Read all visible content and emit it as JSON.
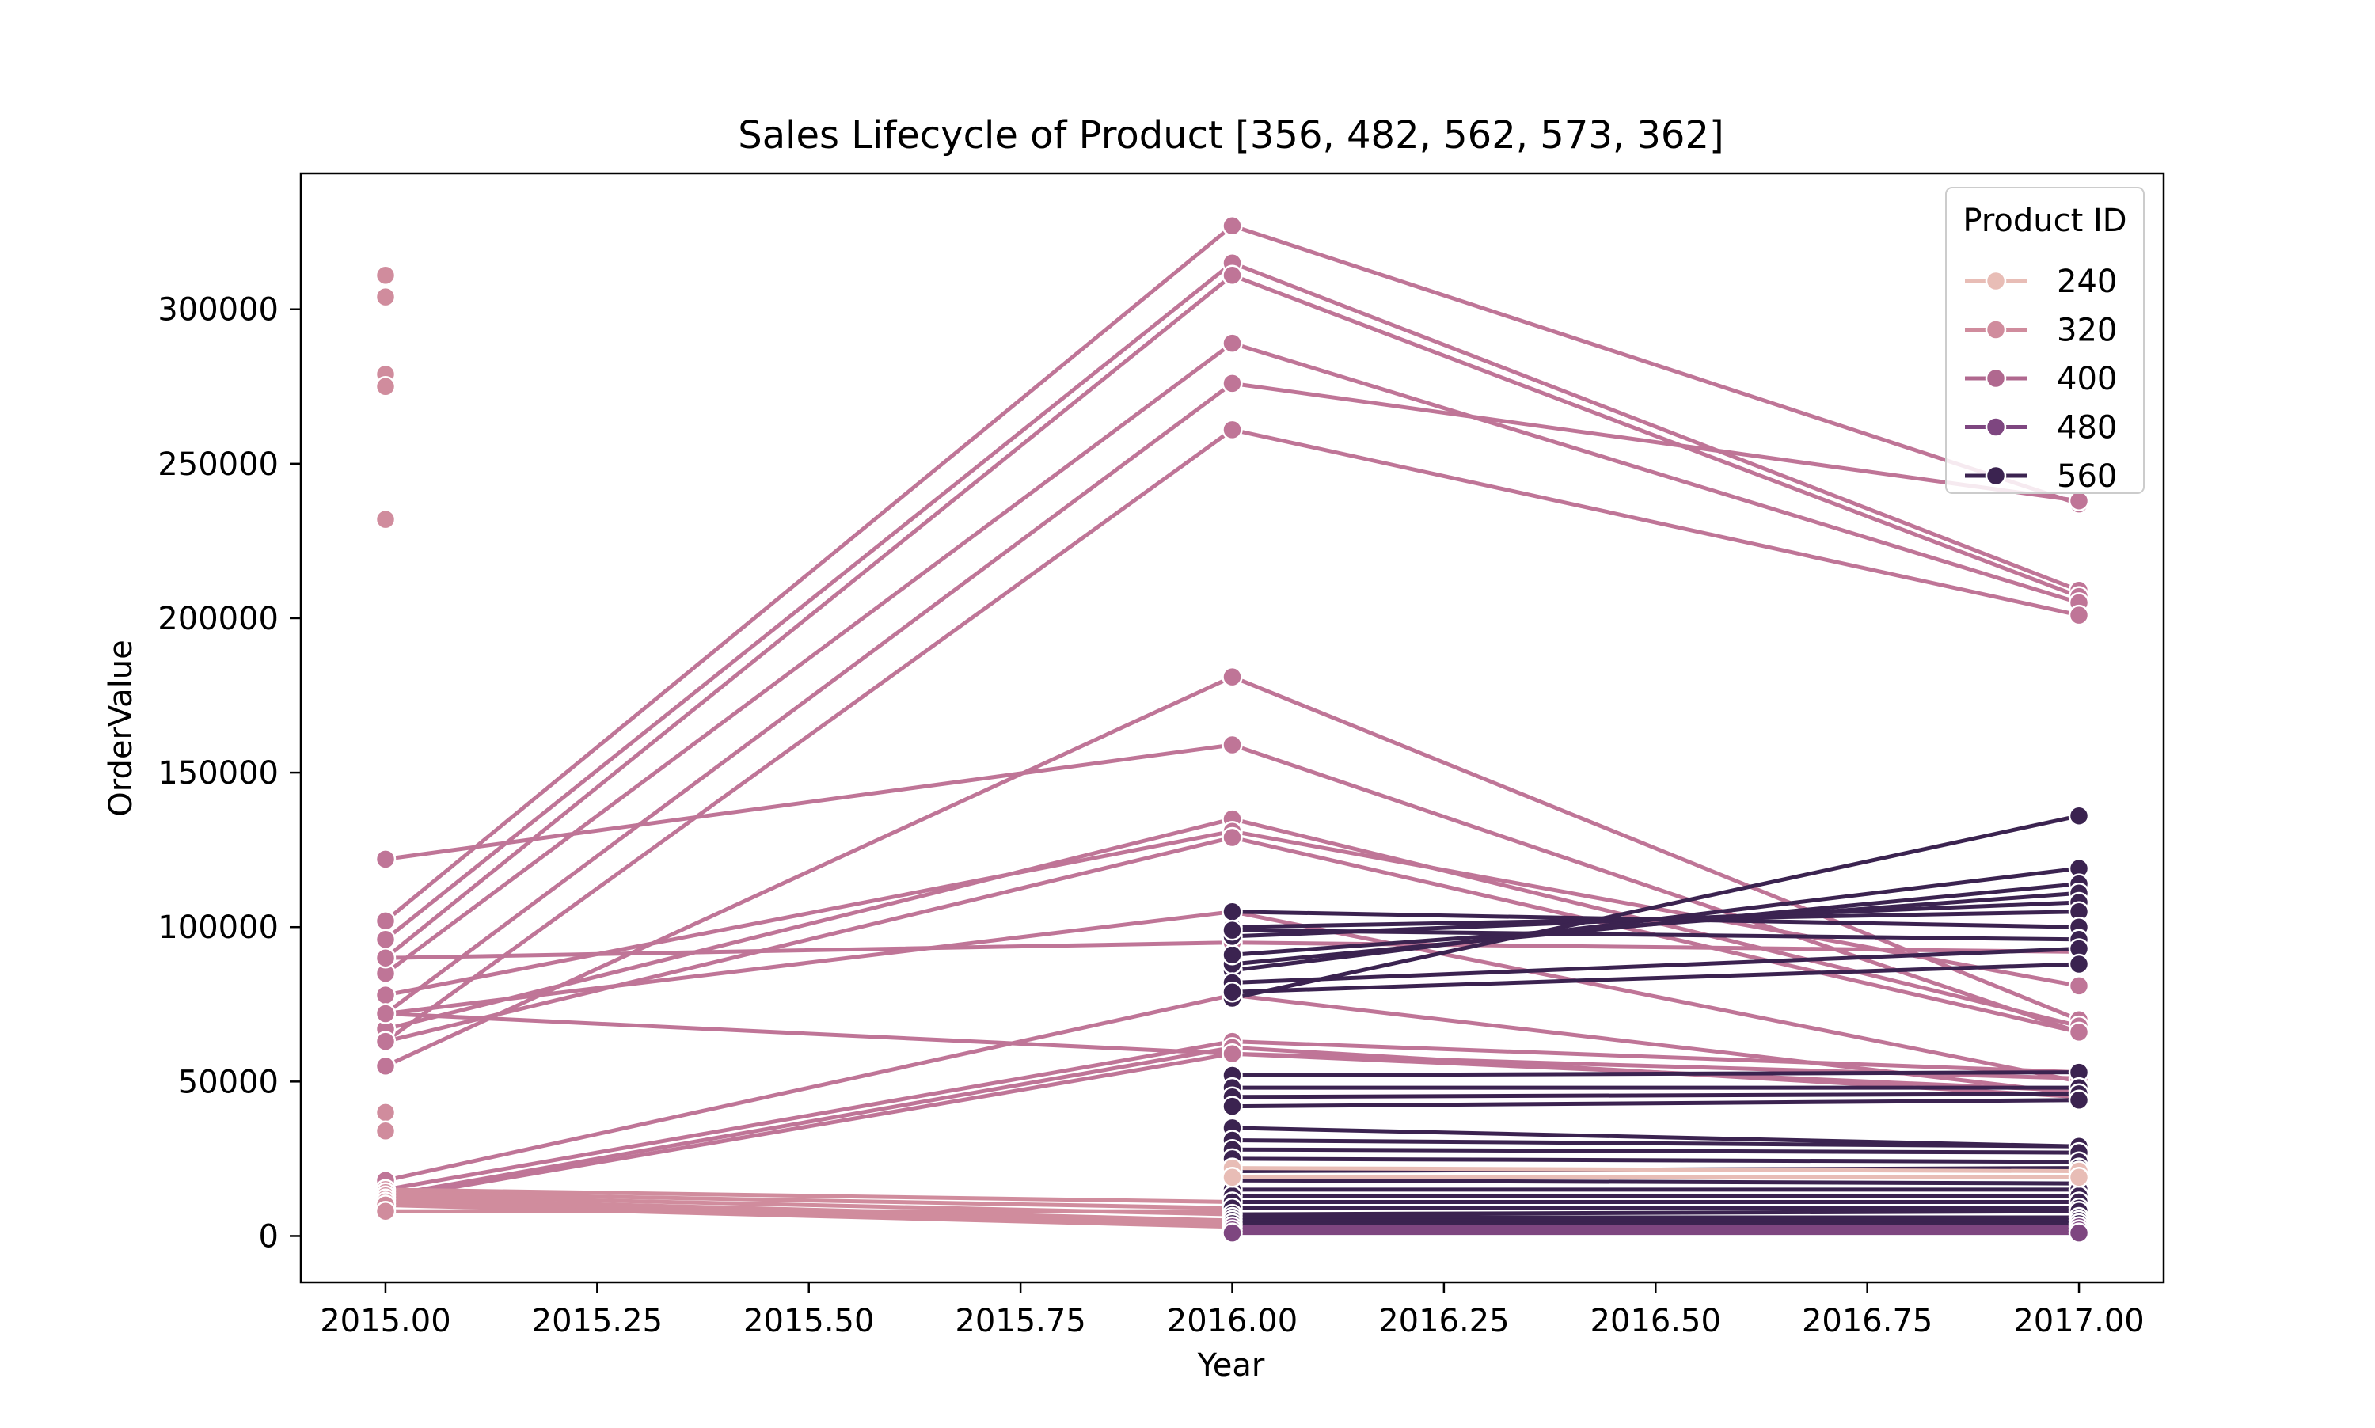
{
  "chart_data": {
    "type": "line",
    "title": "Sales Lifecycle of Product [356, 482, 562, 573, 362]",
    "xlabel": "Year",
    "ylabel": "OrderValue",
    "xlim": [
      2014.9,
      2017.1
    ],
    "ylim": [
      -15000,
      344000
    ],
    "x_ticks": [
      2015.0,
      2015.25,
      2015.5,
      2015.75,
      2016.0,
      2016.25,
      2016.5,
      2016.75,
      2017.0
    ],
    "x_tick_labels": [
      "2015.00",
      "2015.25",
      "2015.50",
      "2015.75",
      "2016.00",
      "2016.25",
      "2016.50",
      "2016.75",
      "2017.00"
    ],
    "y_ticks": [
      0,
      50000,
      100000,
      150000,
      200000,
      250000,
      300000
    ],
    "y_tick_labels": [
      "0",
      "50000",
      "100000",
      "150000",
      "200000",
      "250000",
      "300000"
    ],
    "grid": false,
    "legend": {
      "title": "Product ID",
      "placement": "top-right",
      "entries": [
        {
          "label": "240",
          "color": "#e8bdb6"
        },
        {
          "label": "320",
          "color": "#d08c9d"
        },
        {
          "label": "400",
          "color": "#b0688f"
        },
        {
          "label": "480",
          "color": "#7e4680"
        },
        {
          "label": "560",
          "color": "#3b2350"
        }
      ]
    },
    "series": [
      {
        "color": "#bf7597",
        "x": [
          2015,
          2016,
          2017
        ],
        "y": [
          102000,
          327000,
          237000
        ]
      },
      {
        "color": "#bf7597",
        "x": [
          2015,
          2016,
          2017
        ],
        "y": [
          96000,
          315000,
          209000
        ]
      },
      {
        "color": "#bf7597",
        "x": [
          2015,
          2016,
          2017
        ],
        "y": [
          90000,
          311000,
          207000
        ]
      },
      {
        "color": "#bf7597",
        "x": [
          2015,
          2016,
          2017
        ],
        "y": [
          85000,
          289000,
          205000
        ]
      },
      {
        "color": "#bf7597",
        "x": [
          2015,
          2016,
          2017
        ],
        "y": [
          72000,
          276000,
          238000
        ]
      },
      {
        "color": "#bf7597",
        "x": [
          2015,
          2016,
          2017
        ],
        "y": [
          63000,
          261000,
          201000
        ]
      },
      {
        "color": "#bf7597",
        "x": [
          2015,
          2016,
          2017
        ],
        "y": [
          55000,
          181000,
          70000
        ]
      },
      {
        "color": "#bf7597",
        "x": [
          2015,
          2016,
          2017
        ],
        "y": [
          122000,
          159000,
          66000
        ]
      },
      {
        "color": "#bf7597",
        "x": [
          2015,
          2016,
          2017
        ],
        "y": [
          67000,
          135000,
          68000
        ]
      },
      {
        "color": "#bf7597",
        "x": [
          2015,
          2016,
          2017
        ],
        "y": [
          78000,
          131000,
          81000
        ]
      },
      {
        "color": "#bf7597",
        "x": [
          2015,
          2016,
          2017
        ],
        "y": [
          63000,
          129000,
          66000
        ]
      },
      {
        "color": "#bf7597",
        "x": [
          2015,
          2016,
          2017
        ],
        "y": [
          72000,
          105000,
          50000
        ]
      },
      {
        "color": "#bf7597",
        "x": [
          2015,
          2016,
          2017
        ],
        "y": [
          90000,
          95000,
          92000
        ]
      },
      {
        "color": "#bf7597",
        "x": [
          2015,
          2016,
          2017
        ],
        "y": [
          72000,
          59000,
          51000
        ]
      },
      {
        "color": "#bf7597",
        "x": [
          2015,
          2016,
          2017
        ],
        "y": [
          18000,
          78000,
          46000
        ]
      },
      {
        "color": "#bf7597",
        "x": [
          2015,
          2016,
          2017
        ],
        "y": [
          15000,
          63000,
          53000
        ]
      },
      {
        "color": "#bf7597",
        "x": [
          2015,
          2016,
          2017
        ],
        "y": [
          13000,
          61000,
          45000
        ]
      },
      {
        "color": "#bf7597",
        "x": [
          2015,
          2016,
          2017
        ],
        "y": [
          12000,
          59000,
          47000
        ]
      },
      {
        "color": "#d08c9d",
        "x": [
          2015
        ],
        "y": [
          311000
        ]
      },
      {
        "color": "#d08c9d",
        "x": [
          2015
        ],
        "y": [
          304000
        ]
      },
      {
        "color": "#d08c9d",
        "x": [
          2015
        ],
        "y": [
          279000
        ]
      },
      {
        "color": "#d08c9d",
        "x": [
          2015
        ],
        "y": [
          275000
        ]
      },
      {
        "color": "#d08c9d",
        "x": [
          2015
        ],
        "y": [
          232000
        ]
      },
      {
        "color": "#d08c9d",
        "x": [
          2015
        ],
        "y": [
          40000
        ]
      },
      {
        "color": "#d08c9d",
        "x": [
          2015
        ],
        "y": [
          34000
        ]
      },
      {
        "color": "#d08c9d",
        "x": [
          2015,
          2016
        ],
        "y": [
          15000,
          11000
        ]
      },
      {
        "color": "#d08c9d",
        "x": [
          2015,
          2016
        ],
        "y": [
          14000,
          9000
        ]
      },
      {
        "color": "#d08c9d",
        "x": [
          2015,
          2016
        ],
        "y": [
          13000,
          7000
        ]
      },
      {
        "color": "#d08c9d",
        "x": [
          2015,
          2016
        ],
        "y": [
          12000,
          5000
        ]
      },
      {
        "color": "#d08c9d",
        "x": [
          2015,
          2016
        ],
        "y": [
          11000,
          4000
        ]
      },
      {
        "color": "#d08c9d",
        "x": [
          2015,
          2016
        ],
        "y": [
          10000,
          3000
        ]
      },
      {
        "color": "#d08c9d",
        "x": [
          2015,
          2016
        ],
        "y": [
          8000,
          8000
        ]
      },
      {
        "color": "#3b2350",
        "x": [
          2016,
          2017
        ],
        "y": [
          77000,
          136000
        ]
      },
      {
        "color": "#3b2350",
        "x": [
          2016,
          2017
        ],
        "y": [
          86000,
          119000
        ]
      },
      {
        "color": "#3b2350",
        "x": [
          2016,
          2017
        ],
        "y": [
          88000,
          114000
        ]
      },
      {
        "color": "#3b2350",
        "x": [
          2016,
          2017
        ],
        "y": [
          91000,
          111000
        ]
      },
      {
        "color": "#3b2350",
        "x": [
          2016,
          2017
        ],
        "y": [
          97000,
          108000
        ]
      },
      {
        "color": "#3b2350",
        "x": [
          2016,
          2017
        ],
        "y": [
          100000,
          105000
        ]
      },
      {
        "color": "#3b2350",
        "x": [
          2016,
          2017
        ],
        "y": [
          105000,
          100000
        ]
      },
      {
        "color": "#3b2350",
        "x": [
          2016,
          2017
        ],
        "y": [
          99000,
          96000
        ]
      },
      {
        "color": "#3b2350",
        "x": [
          2016,
          2017
        ],
        "y": [
          82000,
          93000
        ]
      },
      {
        "color": "#3b2350",
        "x": [
          2016,
          2017
        ],
        "y": [
          79000,
          88000
        ]
      },
      {
        "color": "#3b2350",
        "x": [
          2016,
          2017
        ],
        "y": [
          52000,
          53000
        ]
      },
      {
        "color": "#3b2350",
        "x": [
          2016,
          2017
        ],
        "y": [
          48000,
          48000
        ]
      },
      {
        "color": "#3b2350",
        "x": [
          2016,
          2017
        ],
        "y": [
          45000,
          46000
        ]
      },
      {
        "color": "#3b2350",
        "x": [
          2016,
          2017
        ],
        "y": [
          42000,
          44000
        ]
      },
      {
        "color": "#3b2350",
        "x": [
          2016,
          2017
        ],
        "y": [
          35000,
          29000
        ]
      },
      {
        "color": "#3b2350",
        "x": [
          2016,
          2017
        ],
        "y": [
          31000,
          29000
        ]
      },
      {
        "color": "#3b2350",
        "x": [
          2016,
          2017
        ],
        "y": [
          28000,
          27000
        ]
      },
      {
        "color": "#3b2350",
        "x": [
          2016,
          2017
        ],
        "y": [
          25000,
          24000
        ]
      },
      {
        "color": "#3b2350",
        "x": [
          2016,
          2017
        ],
        "y": [
          21000,
          22000
        ]
      },
      {
        "color": "#3b2350",
        "x": [
          2016,
          2017
        ],
        "y": [
          18000,
          17000
        ]
      },
      {
        "color": "#3b2350",
        "x": [
          2016,
          2017
        ],
        "y": [
          15000,
          15000
        ]
      },
      {
        "color": "#3b2350",
        "x": [
          2016,
          2017
        ],
        "y": [
          13000,
          13000
        ]
      },
      {
        "color": "#3b2350",
        "x": [
          2016,
          2017
        ],
        "y": [
          11000,
          11000
        ]
      },
      {
        "color": "#3b2350",
        "x": [
          2016,
          2017
        ],
        "y": [
          9000,
          9000
        ]
      },
      {
        "color": "#3b2350",
        "x": [
          2016,
          2017
        ],
        "y": [
          7000,
          8000
        ]
      },
      {
        "color": "#3b2350",
        "x": [
          2016,
          2017
        ],
        "y": [
          6000,
          6000
        ]
      },
      {
        "color": "#3b2350",
        "x": [
          2016,
          2017
        ],
        "y": [
          5000,
          5000
        ]
      },
      {
        "color": "#3b2350",
        "x": [
          2016,
          2017
        ],
        "y": [
          4000,
          4000
        ]
      },
      {
        "color": "#7e4680",
        "x": [
          2016,
          2017
        ],
        "y": [
          3000,
          3000
        ]
      },
      {
        "color": "#7e4680",
        "x": [
          2016,
          2017
        ],
        "y": [
          2000,
          2000
        ]
      },
      {
        "color": "#7e4680",
        "x": [
          2016,
          2017
        ],
        "y": [
          1000,
          1000
        ]
      },
      {
        "color": "#e8bdb6",
        "x": [
          2016,
          2017
        ],
        "y": [
          22000,
          21000
        ]
      },
      {
        "color": "#e8bdb6",
        "x": [
          2016,
          2017
        ],
        "y": [
          19000,
          19000
        ]
      }
    ]
  }
}
